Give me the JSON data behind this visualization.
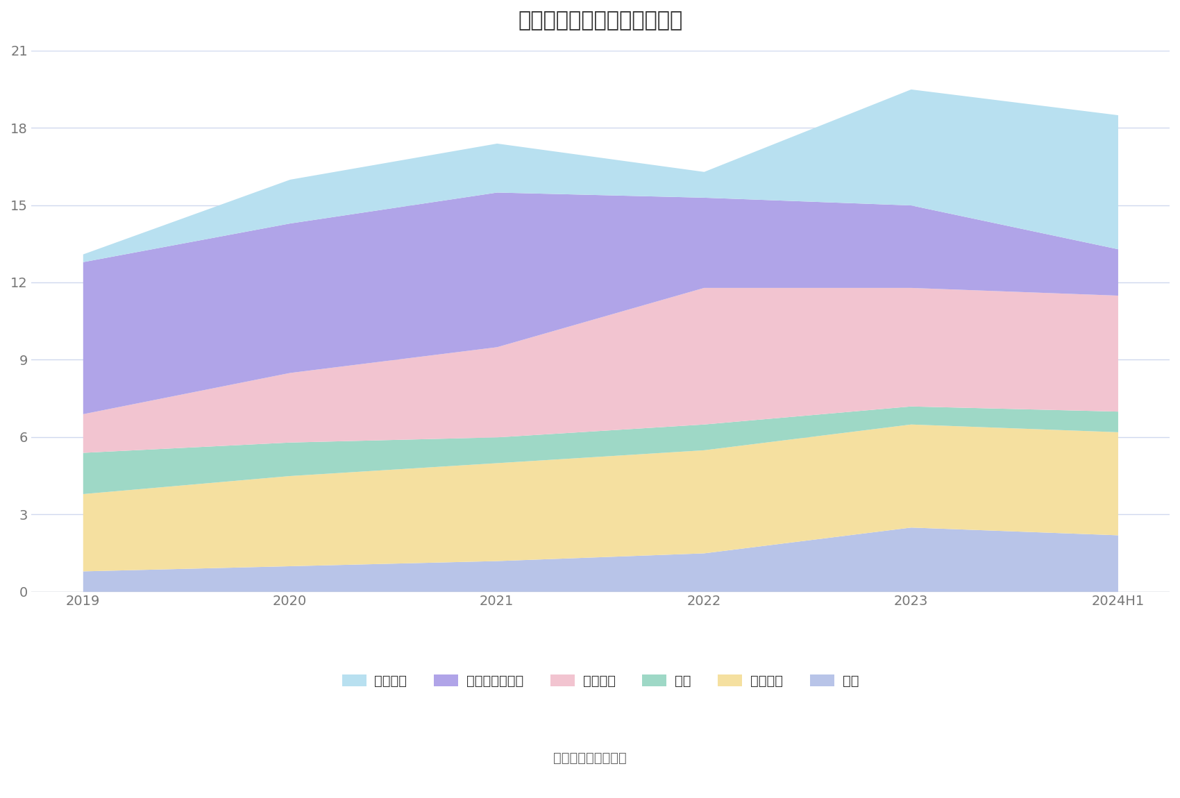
{
  "title": "历年主要资产堆积图（亿元）",
  "x_labels": [
    "2019",
    "2020",
    "2021",
    "2022",
    "2023",
    "2024H1"
  ],
  "series_individual": {
    "其它": [
      0.8,
      1.0,
      1.2,
      1.5,
      2.5,
      2.2
    ],
    "固定资产": [
      3.0,
      3.5,
      3.8,
      4.0,
      4.0,
      4.0
    ],
    "存货": [
      1.6,
      1.3,
      1.0,
      1.0,
      0.7,
      0.8
    ],
    "应收账款": [
      1.5,
      2.7,
      3.5,
      5.3,
      4.6,
      4.5
    ],
    "交易性金融资产": [
      5.9,
      5.8,
      6.0,
      3.5,
      3.2,
      1.8
    ],
    "货币资金": [
      0.3,
      1.7,
      1.9,
      1.0,
      4.5,
      5.2
    ]
  },
  "colors": {
    "其它": "#b8c4e8",
    "固定资产": "#f5e0a0",
    "存货": "#9ed8c6",
    "应收账款": "#f2c4d0",
    "交易性金融资产": "#b0a4e8",
    "货币资金": "#b8e0f0"
  },
  "legend_order": [
    "货币资金",
    "交易性金融资产",
    "应收账款",
    "存货",
    "固定资产",
    "其它"
  ],
  "bottom_to_top": [
    "其它",
    "固定资产",
    "存货",
    "应收账款",
    "交易性金融资产",
    "货币资金"
  ],
  "ylim": [
    0,
    21
  ],
  "yticks": [
    0,
    3,
    6,
    9,
    12,
    15,
    18,
    21
  ],
  "source_text": "数据来源：恒生聚源",
  "bg_color": "#ffffff",
  "grid_color": "#d0d8ee",
  "title_fontsize": 22,
  "tick_fontsize": 14,
  "legend_fontsize": 14,
  "source_fontsize": 14
}
